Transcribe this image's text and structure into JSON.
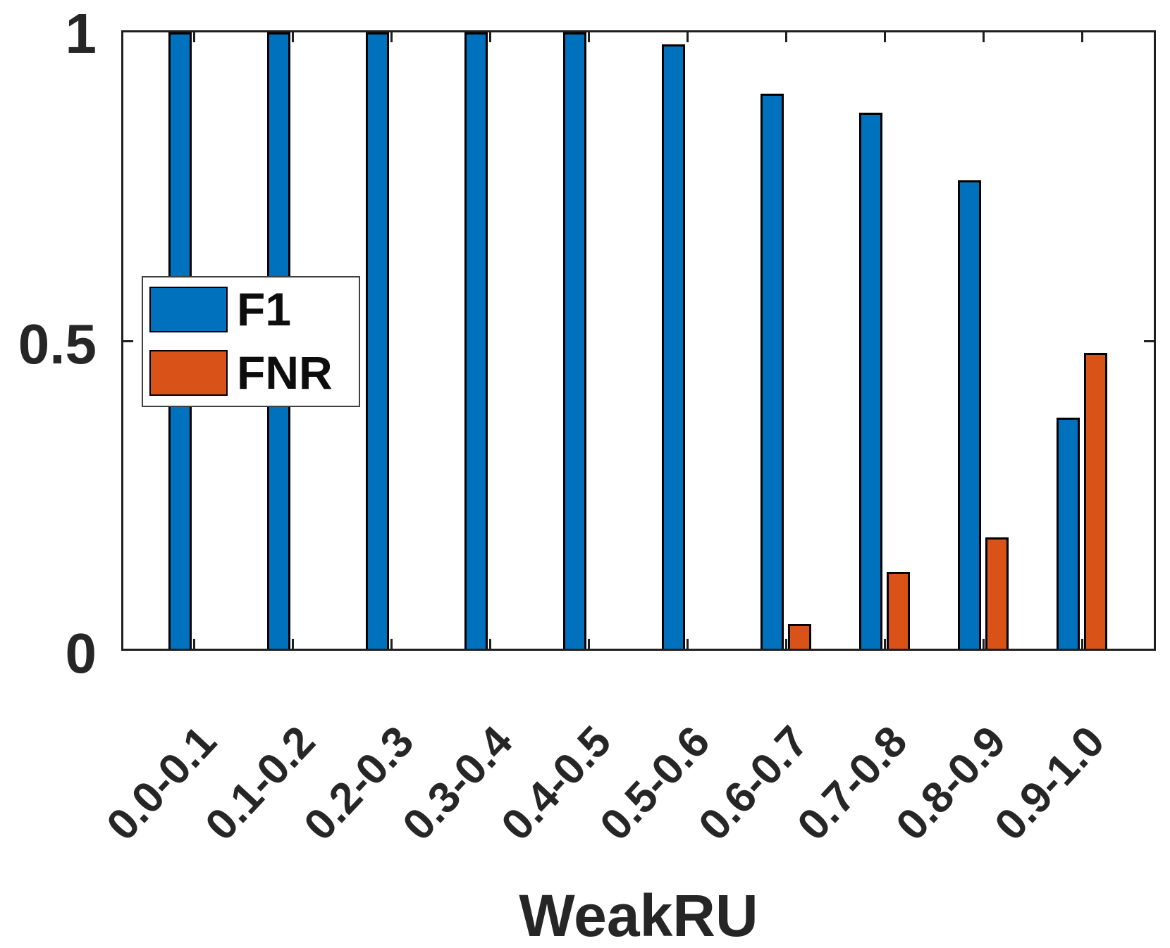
{
  "chart_data": {
    "type": "bar",
    "title": "",
    "xlabel": "WeakRU",
    "ylabel": "",
    "categories": [
      "0.0-0.1",
      "0.1-0.2",
      "0.2-0.3",
      "0.3-0.4",
      "0.4-0.5",
      "0.5-0.6",
      "0.6-0.7",
      "0.7-0.8",
      "0.8-0.9",
      "0.9-1.0"
    ],
    "series": [
      {
        "name": "F1",
        "color": "#0072BD",
        "values": [
          1.0,
          1.0,
          1.0,
          1.0,
          1.0,
          0.98,
          0.9,
          0.87,
          0.76,
          0.375
        ]
      },
      {
        "name": "FNR",
        "color": "#D95319",
        "values": [
          0,
          0,
          0,
          0,
          0,
          0,
          0.04,
          0.125,
          0.18,
          0.48
        ]
      }
    ],
    "ylim": [
      0,
      1
    ],
    "yticks": [
      0,
      0.5,
      1
    ],
    "ytick_labels": [
      "0",
      "0.5",
      "1"
    ],
    "grid": false,
    "legend_position": "upper-left-inside",
    "bar_edge_color": "#000000",
    "axis_color": "#262626"
  }
}
